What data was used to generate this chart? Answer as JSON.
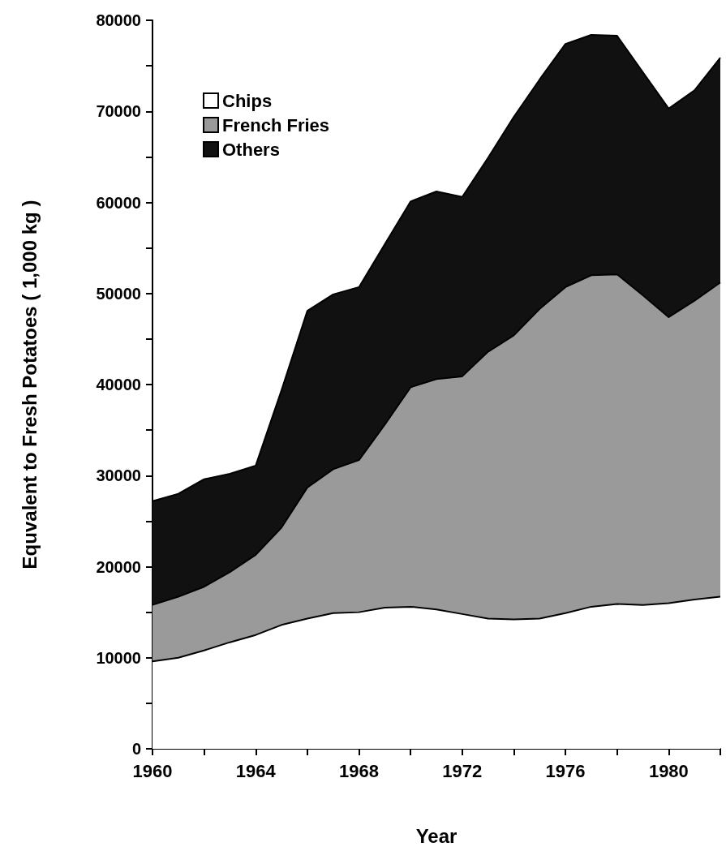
{
  "chart_data": {
    "type": "area",
    "stacked": true,
    "xlabel": "Year",
    "ylabel": "Equvalent to Fresh Potatoes ( 1,000 kg )",
    "x": [
      1960,
      1961,
      1962,
      1963,
      1964,
      1965,
      1966,
      1967,
      1968,
      1969,
      1970,
      1971,
      1972,
      1973,
      1974,
      1975,
      1976,
      1977,
      1978,
      1979,
      1980,
      1981,
      1982
    ],
    "series": [
      {
        "name": "Chips",
        "color": "#ffffff",
        "values": [
          9600,
          10000,
          10800,
          11700,
          12500,
          13600,
          14300,
          14900,
          15000,
          15500,
          15600,
          15300,
          14800,
          14300,
          14200,
          14300,
          14900,
          15600,
          15900,
          15800,
          16000,
          16400,
          16700
        ]
      },
      {
        "name": "French Fries",
        "color": "#9a9a9a",
        "values": [
          6200,
          6700,
          7000,
          7700,
          8800,
          10700,
          14400,
          15800,
          16700,
          20100,
          24100,
          25300,
          26100,
          29300,
          31200,
          34000,
          35800,
          36400,
          36200,
          34000,
          31400,
          32800,
          34500
        ]
      },
      {
        "name": "Others",
        "color": "#111111",
        "values": [
          11400,
          11300,
          11800,
          10800,
          9800,
          15100,
          19400,
          19200,
          19000,
          19800,
          20400,
          20600,
          19700,
          21300,
          24000,
          25200,
          26700,
          26400,
          26200,
          24500,
          22900,
          23100,
          24700
        ]
      }
    ],
    "xlim": [
      1960,
      1982
    ],
    "xticks": [
      1960,
      {
        "value": 1962,
        "label": null
      },
      1964,
      {
        "value": 1966,
        "label": null
      },
      1968,
      {
        "value": 1970,
        "label": null
      },
      1972,
      {
        "value": 1974,
        "label": null
      },
      1976,
      {
        "value": 1978,
        "label": null
      },
      1980,
      {
        "value": 1982,
        "label": null
      }
    ],
    "ylim": [
      0,
      80000
    ],
    "yticks": [
      0,
      {
        "value": 5000,
        "label": null
      },
      10000,
      {
        "value": 15000,
        "label": null
      },
      20000,
      {
        "value": 25000,
        "label": null
      },
      30000,
      {
        "value": 35000,
        "label": null
      },
      40000,
      {
        "value": 45000,
        "label": null
      },
      50000,
      {
        "value": 55000,
        "label": null
      },
      60000,
      {
        "value": 65000,
        "label": null
      },
      70000,
      {
        "value": 75000,
        "label": null
      },
      80000
    ],
    "grid": false,
    "legend": "top left",
    "line_style": "solid",
    "marker": "none"
  }
}
